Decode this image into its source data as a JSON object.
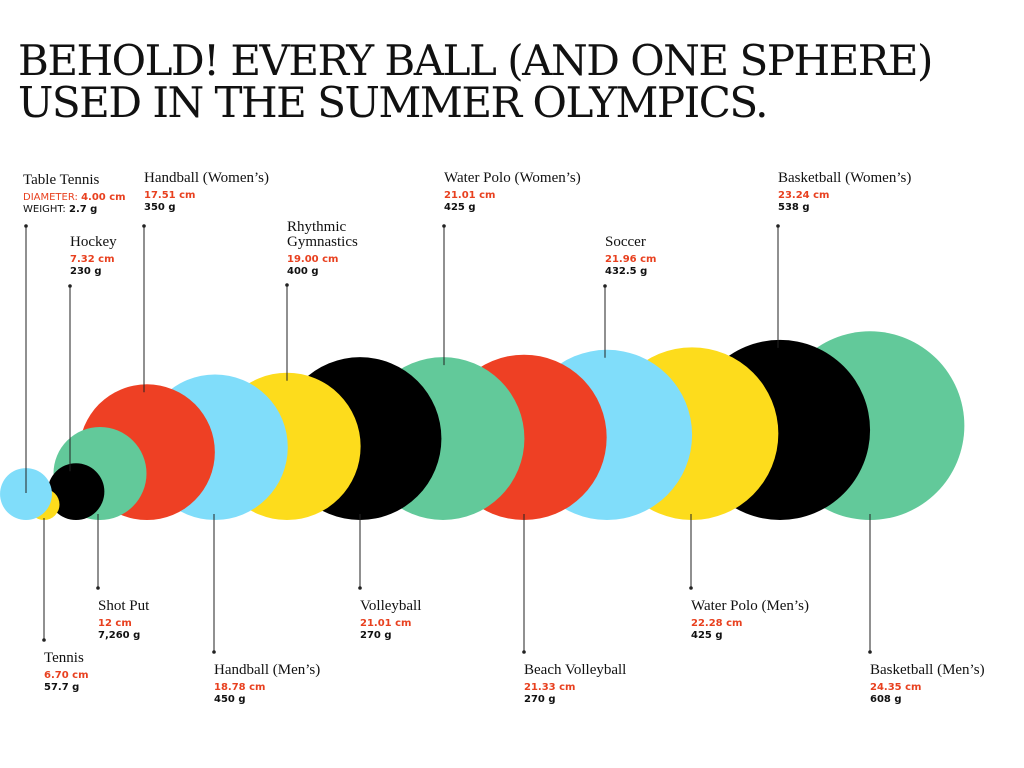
{
  "title": {
    "line1": "BEHOLD! EVERY BALL (AND ONE SPHERE)",
    "line2": "USED IN THE SUMMER OLYMPICS."
  },
  "captions": {
    "diameter": "DIAMETER: ",
    "weight": "WEIGHT: "
  },
  "colors": {
    "red": "#ee4024",
    "blue": "#80ddfa",
    "yellow": "#fddc1c",
    "black": "#000000",
    "green": "#62c99a",
    "label_value": "#e8401f",
    "text": "#111111"
  },
  "balls": [
    {
      "id": "tennis",
      "name": "Tennis",
      "diameter": "6.70 cm",
      "weight": "57.7 g",
      "color": "blue"
    },
    {
      "id": "table-tennis",
      "name": "Table Tennis",
      "diameter": "4.00 cm",
      "weight": "2.7 g",
      "color": "yellow"
    },
    {
      "id": "hockey",
      "name": "Hockey",
      "diameter": "7.32 cm",
      "weight": "230 g",
      "color": "black"
    },
    {
      "id": "shot-put",
      "name": "Shot Put",
      "diameter": "12 cm",
      "weight": "7,260 g",
      "color": "green"
    },
    {
      "id": "handball-womens",
      "name": "Handball (Women’s)",
      "diameter": "17.51 cm",
      "weight": "350 g",
      "color": "red"
    },
    {
      "id": "handball-mens",
      "name": "Handball (Men’s)",
      "diameter": "18.78 cm",
      "weight": "450 g",
      "color": "blue"
    },
    {
      "id": "rhythmic-gymnastics",
      "name": "Rhythmic\nGymnastics",
      "diameter": "19.00 cm",
      "weight": "400 g",
      "color": "yellow"
    },
    {
      "id": "volleyball",
      "name": "Volleyball",
      "diameter": "21.01 cm",
      "weight": "270 g",
      "color": "black"
    },
    {
      "id": "water-polo-womens",
      "name": "Water Polo (Women’s)",
      "diameter": "21.01 cm",
      "weight": "425 g",
      "color": "green"
    },
    {
      "id": "beach-volleyball",
      "name": "Beach Volleyball",
      "diameter": "21.33 cm",
      "weight": "270 g",
      "color": "red"
    },
    {
      "id": "soccer",
      "name": "Soccer",
      "diameter": "21.96  cm",
      "weight": "432.5 g",
      "color": "blue"
    },
    {
      "id": "water-polo-mens",
      "name": "Water Polo (Men’s)",
      "diameter": "22.28 cm",
      "weight": "425 g",
      "color": "yellow"
    },
    {
      "id": "basketball-womens",
      "name": "Basketball (Women’s)",
      "diameter": "23.24 cm",
      "weight": "538 g",
      "color": "black"
    },
    {
      "id": "basketball-mens",
      "name": "Basketball (Men’s)",
      "diameter": "24.35 cm",
      "weight": "608 g",
      "color": "green"
    }
  ]
}
